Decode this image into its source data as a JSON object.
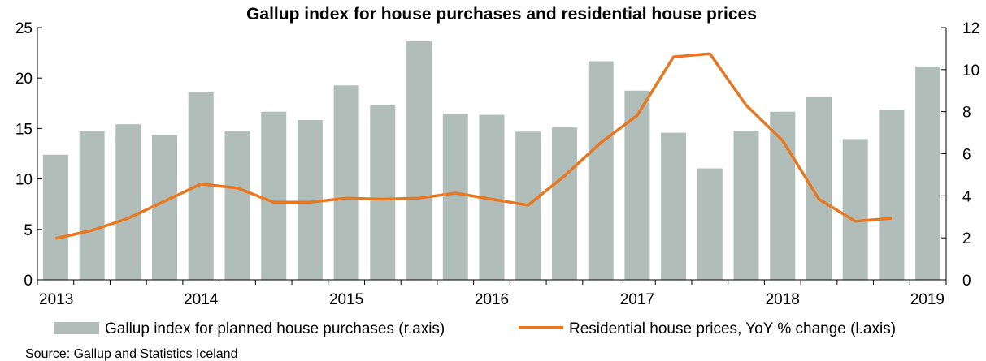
{
  "chart_data": {
    "type": "bar+line",
    "title": "Gallup index for house purchases and residential house prices",
    "source": "Source: Gallup and Statistics Iceland",
    "x_tick_labels": [
      "2013",
      "2014",
      "2015",
      "2016",
      "2017",
      "2018",
      "2019"
    ],
    "left_axis": {
      "ylim": [
        0,
        25
      ],
      "ticks": [
        "0",
        "5",
        "10",
        "15",
        "20",
        "25"
      ]
    },
    "right_axis": {
      "ylim": [
        0,
        12
      ],
      "ticks": [
        "0",
        "2",
        "4",
        "6",
        "8",
        "10",
        "12"
      ]
    },
    "grid": false,
    "legend_position": "bottom",
    "bar_series": {
      "name": "Gallup index for planned house purchases (r.axis)",
      "axis": "right",
      "color": "#b0bdb8",
      "values": [
        5.95,
        7.1,
        7.4,
        6.9,
        8.95,
        7.1,
        8.0,
        7.6,
        9.25,
        8.3,
        11.35,
        7.9,
        7.85,
        7.05,
        7.25,
        10.4,
        9.0,
        7.0,
        5.3,
        7.1,
        8.0,
        8.7,
        6.7,
        8.1,
        10.15
      ]
    },
    "line_series": {
      "name": "Residential house prices, YoY % change (l.axis)",
      "axis": "left",
      "color": "#e87722",
      "values": [
        4.1,
        4.9,
        6.1,
        7.8,
        9.5,
        9.1,
        7.7,
        7.7,
        8.1,
        8.0,
        8.1,
        8.6,
        8.0,
        7.4,
        10.3,
        13.6,
        16.3,
        22.1,
        22.4,
        17.3,
        13.8,
        8.0,
        5.8,
        6.1
      ]
    }
  }
}
